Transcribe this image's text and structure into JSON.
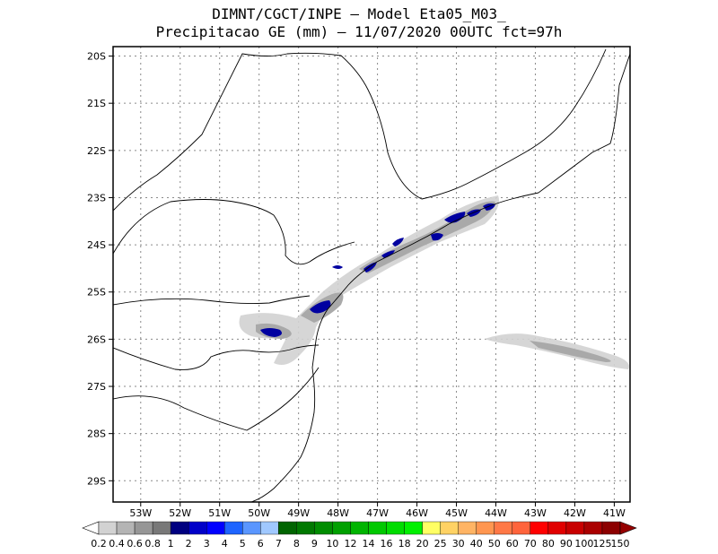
{
  "title_line1": "DIMNT/CGCT/INPE –  Model Eta05_M03_",
  "title_line2": "Precipitacao GE (mm) – 11/07/2020 00UTC fct=97h",
  "lat_labels": [
    "20S",
    "21S",
    "22S",
    "23S",
    "24S",
    "25S",
    "26S",
    "27S",
    "28S",
    "29S"
  ],
  "lon_labels": [
    "53W",
    "52W",
    "51W",
    "50W",
    "49W",
    "48W",
    "47W",
    "46W",
    "45W",
    "44W",
    "43W",
    "42W",
    "41W"
  ],
  "colorbar": {
    "labels": [
      "0.2",
      "0.4",
      "0.6",
      "0.8",
      "1",
      "2",
      "3",
      "4",
      "5",
      "6",
      "7",
      "8",
      "9",
      "10",
      "12",
      "14",
      "16",
      "18",
      "20",
      "25",
      "30",
      "40",
      "50",
      "60",
      "70",
      "80",
      "90",
      "100",
      "125",
      "150"
    ],
    "colors": [
      "#ffffff",
      "#d2d2d2",
      "#b4b4b4",
      "#969696",
      "#787878",
      "#000080",
      "#0000c8",
      "#0000ff",
      "#1e64ff",
      "#5a96ff",
      "#a0c8ff",
      "#006400",
      "#007800",
      "#008c00",
      "#00a000",
      "#00b400",
      "#00c800",
      "#00dc00",
      "#00f000",
      "#ffff64",
      "#ffd264",
      "#ffb464",
      "#ff9650",
      "#ff7846",
      "#ff643c",
      "#ff0000",
      "#e10000",
      "#c80000",
      "#aa0000",
      "#8c0000",
      "#960000"
    ]
  },
  "map": {
    "lon_range": [
      -53.7,
      -40.6
    ],
    "lat_range": [
      -29.45,
      -19.8
    ],
    "grid": true
  }
}
